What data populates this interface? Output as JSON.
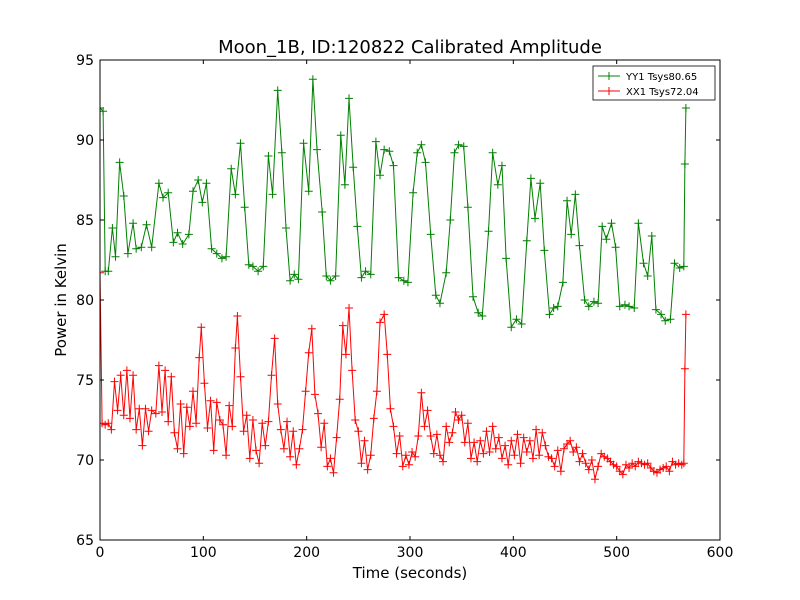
{
  "chart_data": {
    "type": "line",
    "title": "Moon_1B, ID:120822 Calibrated Amplitude",
    "xlabel": "Time (seconds)",
    "ylabel": "Power in Kelvin",
    "xlim": [
      0,
      600
    ],
    "ylim": [
      65,
      95
    ],
    "xticks": [
      "0",
      "100",
      "200",
      "300",
      "400",
      "500",
      "600"
    ],
    "yticks": [
      "65",
      "70",
      "75",
      "80",
      "85",
      "90",
      "95"
    ],
    "grid": false,
    "legend_position": "top-right",
    "marker": "plus",
    "series": [
      {
        "name": "YY1 Tsys80.65",
        "color": "#008000",
        "points": [
          [
            0,
            92
          ],
          [
            3,
            91.8
          ],
          [
            5,
            81.8
          ],
          [
            8,
            81.8
          ],
          [
            12,
            84.5
          ],
          [
            15,
            82.7
          ],
          [
            19,
            88.6
          ],
          [
            23,
            86.5
          ],
          [
            27,
            82.9
          ],
          [
            32,
            84.8
          ],
          [
            35,
            83.2
          ],
          [
            40,
            83.3
          ],
          [
            45,
            84.7
          ],
          [
            50,
            83.3
          ],
          [
            57,
            87.3
          ],
          [
            61,
            86.4
          ],
          [
            66,
            86.7
          ],
          [
            71,
            83.6
          ],
          [
            75,
            84.2
          ],
          [
            80,
            83.5
          ],
          [
            86,
            84.1
          ],
          [
            90,
            86.8
          ],
          [
            95,
            87.5
          ],
          [
            99,
            86.1
          ],
          [
            103,
            87.3
          ],
          [
            108,
            83.2
          ],
          [
            113,
            82.9
          ],
          [
            118,
            82.6
          ],
          [
            122,
            82.7
          ],
          [
            127,
            88.2
          ],
          [
            131,
            86.6
          ],
          [
            136,
            89.8
          ],
          [
            140,
            85.8
          ],
          [
            144,
            82.2
          ],
          [
            148,
            82.1
          ],
          [
            153,
            81.8
          ],
          [
            158,
            82.1
          ],
          [
            163,
            89
          ],
          [
            167,
            86.6
          ],
          [
            172,
            93.1
          ],
          [
            176,
            89.2
          ],
          [
            180,
            84.5
          ],
          [
            184,
            81.2
          ],
          [
            188,
            81.6
          ],
          [
            192,
            81.3
          ],
          [
            197,
            89.8
          ],
          [
            202,
            86.8
          ],
          [
            206,
            93.8
          ],
          [
            210,
            89.4
          ],
          [
            215,
            85.5
          ],
          [
            219,
            81.5
          ],
          [
            223,
            81.2
          ],
          [
            228,
            81.5
          ],
          [
            233,
            90.3
          ],
          [
            237,
            87.2
          ],
          [
            241,
            92.6
          ],
          [
            245,
            88.3
          ],
          [
            249,
            84.6
          ],
          [
            253,
            81.4
          ],
          [
            257,
            81.8
          ],
          [
            262,
            81.6
          ],
          [
            267,
            89.9
          ],
          [
            271,
            87.8
          ],
          [
            275,
            89.4
          ],
          [
            280,
            89.3
          ],
          [
            284,
            88.4
          ],
          [
            289,
            81.4
          ],
          [
            294,
            81.2
          ],
          [
            298,
            81.1
          ],
          [
            303,
            86.7
          ],
          [
            307,
            89.2
          ],
          [
            311,
            89.7
          ],
          [
            315,
            88.6
          ],
          [
            320,
            84.1
          ],
          [
            325,
            80.3
          ],
          [
            329,
            79.8
          ],
          [
            335,
            81.7
          ],
          [
            339,
            85
          ],
          [
            343,
            89.2
          ],
          [
            347,
            89.7
          ],
          [
            352,
            89.6
          ],
          [
            356,
            85.8
          ],
          [
            361,
            80.2
          ],
          [
            366,
            79.2
          ],
          [
            370,
            79
          ],
          [
            376,
            84.3
          ],
          [
            380,
            89.2
          ],
          [
            385,
            87.2
          ],
          [
            389,
            88.4
          ],
          [
            393,
            82.6
          ],
          [
            398,
            78.3
          ],
          [
            403,
            78.8
          ],
          [
            408,
            78.5
          ],
          [
            413,
            83.7
          ],
          [
            417,
            87.6
          ],
          [
            421,
            85.1
          ],
          [
            426,
            87.3
          ],
          [
            430,
            83.1
          ],
          [
            435,
            79.1
          ],
          [
            439,
            79.5
          ],
          [
            443,
            79.6
          ],
          [
            448,
            81.1
          ],
          [
            452,
            86.2
          ],
          [
            456,
            84.1
          ],
          [
            460,
            86.6
          ],
          [
            464,
            83.4
          ],
          [
            469,
            80
          ],
          [
            473,
            79.6
          ],
          [
            478,
            79.9
          ],
          [
            482,
            79.8
          ],
          [
            486,
            84.6
          ],
          [
            490,
            83.8
          ],
          [
            495,
            84.8
          ],
          [
            499,
            83.3
          ],
          [
            503,
            79.6
          ],
          [
            508,
            79.7
          ],
          [
            512,
            79.6
          ],
          [
            517,
            79.5
          ],
          [
            521,
            84.8
          ],
          [
            526,
            82.3
          ],
          [
            530,
            81.5
          ],
          [
            534,
            84
          ],
          [
            538,
            79.4
          ],
          [
            543,
            79.1
          ],
          [
            547,
            78.7
          ],
          [
            552,
            78.8
          ],
          [
            556,
            82.3
          ],
          [
            561,
            82
          ],
          [
            565,
            82.1
          ],
          [
            566,
            88.5
          ],
          [
            567,
            92
          ]
        ]
      },
      {
        "name": "XX1 Tsys72.04",
        "color": "#ff0000",
        "points": [
          [
            0,
            81.7
          ],
          [
            2,
            72.3
          ],
          [
            5,
            72.2
          ],
          [
            8,
            72.3
          ],
          [
            11,
            71.9
          ],
          [
            14,
            74.9
          ],
          [
            17,
            73.1
          ],
          [
            20,
            75.3
          ],
          [
            23,
            72.8
          ],
          [
            26,
            75.6
          ],
          [
            29,
            72.6
          ],
          [
            32,
            75.3
          ],
          [
            35,
            71.9
          ],
          [
            38,
            73.2
          ],
          [
            41,
            70.9
          ],
          [
            44,
            73.2
          ],
          [
            47,
            71.8
          ],
          [
            50,
            73.1
          ],
          [
            54,
            72.9
          ],
          [
            57,
            75.9
          ],
          [
            60,
            73
          ],
          [
            63,
            75.6
          ],
          [
            66,
            72.4
          ],
          [
            69,
            75.2
          ],
          [
            72,
            71.7
          ],
          [
            75,
            70.7
          ],
          [
            78,
            73.5
          ],
          [
            81,
            70.4
          ],
          [
            84,
            73.3
          ],
          [
            87,
            72.1
          ],
          [
            90,
            74.3
          ],
          [
            93,
            72.3
          ],
          [
            96,
            76.4
          ],
          [
            98,
            78.3
          ],
          [
            101,
            74.8
          ],
          [
            104,
            72
          ],
          [
            107,
            73.7
          ],
          [
            110,
            70.6
          ],
          [
            113,
            73.6
          ],
          [
            116,
            72.5
          ],
          [
            119,
            72.2
          ],
          [
            122,
            70.3
          ],
          [
            125,
            73.4
          ],
          [
            128,
            72.1
          ],
          [
            131,
            77
          ],
          [
            133,
            79
          ],
          [
            136,
            75.2
          ],
          [
            139,
            71.8
          ],
          [
            142,
            72.8
          ],
          [
            145,
            70.1
          ],
          [
            148,
            72.5
          ],
          [
            151,
            70.6
          ],
          [
            154,
            69.8
          ],
          [
            157,
            72.3
          ],
          [
            160,
            70.9
          ],
          [
            163,
            72.4
          ],
          [
            166,
            75.3
          ],
          [
            169,
            77.6
          ],
          [
            172,
            73.5
          ],
          [
            175,
            71.9
          ],
          [
            178,
            70.7
          ],
          [
            181,
            72.4
          ],
          [
            184,
            70.2
          ],
          [
            187,
            71.8
          ],
          [
            190,
            69.7
          ],
          [
            193,
            70.7
          ],
          [
            196,
            71.9
          ],
          [
            199,
            74.3
          ],
          [
            202,
            76.7
          ],
          [
            205,
            78.2
          ],
          [
            208,
            74.1
          ],
          [
            211,
            72.9
          ],
          [
            214,
            70.8
          ],
          [
            217,
            72.3
          ],
          [
            220,
            69.6
          ],
          [
            223,
            70.1
          ],
          [
            226,
            69.2
          ],
          [
            229,
            71.4
          ],
          [
            232,
            73.8
          ],
          [
            235,
            78.4
          ],
          [
            238,
            76.6
          ],
          [
            241,
            79.5
          ],
          [
            244,
            75.6
          ],
          [
            247,
            72.5
          ],
          [
            250,
            71.8
          ],
          [
            253,
            69.8
          ],
          [
            256,
            71.2
          ],
          [
            259,
            69.4
          ],
          [
            262,
            70.3
          ],
          [
            265,
            72.6
          ],
          [
            268,
            74.3
          ],
          [
            271,
            78.6
          ],
          [
            275,
            79.1
          ],
          [
            278,
            76.6
          ],
          [
            281,
            73.2
          ],
          [
            284,
            72.1
          ],
          [
            287,
            70.4
          ],
          [
            290,
            71.5
          ],
          [
            293,
            69.6
          ],
          [
            296,
            70.3
          ],
          [
            299,
            69.7
          ],
          [
            302,
            70.5
          ],
          [
            305,
            70.2
          ],
          [
            308,
            71.5
          ],
          [
            311,
            74.2
          ],
          [
            314,
            72.1
          ],
          [
            317,
            73.1
          ],
          [
            320,
            71.5
          ],
          [
            323,
            70.4
          ],
          [
            326,
            71.6
          ],
          [
            329,
            70.3
          ],
          [
            332,
            69.9
          ],
          [
            335,
            72.1
          ],
          [
            338,
            71.1
          ],
          [
            341,
            71.7
          ],
          [
            344,
            73
          ],
          [
            347,
            72.5
          ],
          [
            350,
            72.8
          ],
          [
            353,
            71.1
          ],
          [
            356,
            72.3
          ],
          [
            359,
            70.1
          ],
          [
            362,
            71.1
          ],
          [
            365,
            69.9
          ],
          [
            368,
            71.2
          ],
          [
            371,
            70.4
          ],
          [
            374,
            71.8
          ],
          [
            377,
            70.5
          ],
          [
            380,
            72.1
          ],
          [
            383,
            70.7
          ],
          [
            386,
            71.4
          ],
          [
            389,
            70.1
          ],
          [
            392,
            70.9
          ],
          [
            395,
            69.7
          ],
          [
            398,
            71.2
          ],
          [
            401,
            70.3
          ],
          [
            404,
            71.6
          ],
          [
            407,
            69.8
          ],
          [
            410,
            71.4
          ],
          [
            413,
            70.5
          ],
          [
            416,
            71.2
          ],
          [
            419,
            70.1
          ],
          [
            422,
            71.9
          ],
          [
            425,
            70.3
          ],
          [
            428,
            71.7
          ],
          [
            431,
            70.9
          ],
          [
            434,
            70.2
          ],
          [
            437,
            70.1
          ],
          [
            440,
            69.6
          ],
          [
            443,
            70.6
          ],
          [
            446,
            69.3
          ],
          [
            449,
            70.7
          ],
          [
            452,
            71
          ],
          [
            455,
            71.2
          ],
          [
            458,
            70.5
          ],
          [
            461,
            70.8
          ],
          [
            464,
            69.9
          ],
          [
            467,
            70.4
          ],
          [
            470,
            69.8
          ],
          [
            473,
            69.4
          ],
          [
            476,
            70
          ],
          [
            479,
            68.8
          ],
          [
            482,
            69.6
          ],
          [
            485,
            70.4
          ],
          [
            488,
            70.2
          ],
          [
            491,
            70.1
          ],
          [
            494,
            69.9
          ],
          [
            497,
            69.7
          ],
          [
            500,
            69.6
          ],
          [
            503,
            69.3
          ],
          [
            506,
            69.1
          ],
          [
            509,
            69.7
          ],
          [
            512,
            69.5
          ],
          [
            515,
            69.8
          ],
          [
            518,
            69.6
          ],
          [
            521,
            69.9
          ],
          [
            524,
            69.8
          ],
          [
            527,
            69.7
          ],
          [
            530,
            69.8
          ],
          [
            533,
            69.5
          ],
          [
            536,
            69.3
          ],
          [
            539,
            69.2
          ],
          [
            542,
            69.4
          ],
          [
            545,
            69.5
          ],
          [
            548,
            69.6
          ],
          [
            551,
            69.3
          ],
          [
            554,
            69.9
          ],
          [
            557,
            69.7
          ],
          [
            560,
            69.8
          ],
          [
            563,
            69.7
          ],
          [
            565,
            69.8
          ],
          [
            566,
            75.7
          ],
          [
            567,
            79.1
          ]
        ]
      }
    ]
  }
}
